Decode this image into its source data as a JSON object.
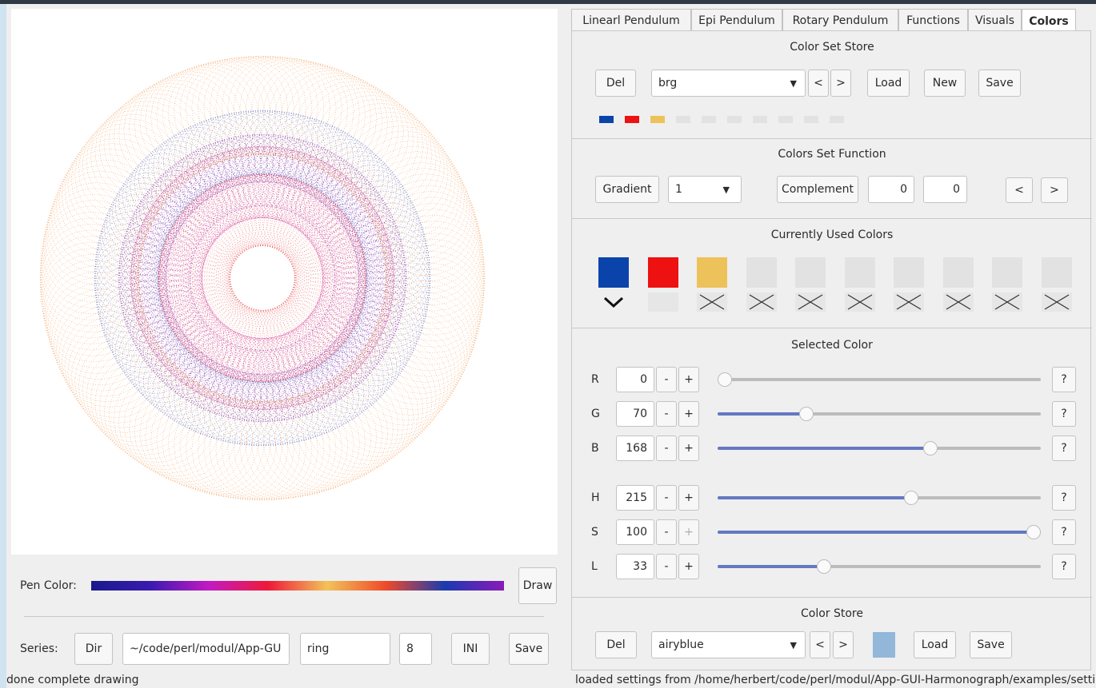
{
  "left": {
    "pen_color_label": "Pen Color:",
    "draw_button": "Draw",
    "series_label": "Series:",
    "dir_button": "Dir",
    "path_value": "~/code/perl/modul/App-GU",
    "name_value": "ring",
    "number_value": "8",
    "ini_button": "INI",
    "save_button": "Save",
    "status": "done complete drawing",
    "drawing_colors": [
      "#2440a8",
      "#7a1fa8",
      "#c8208a",
      "#e43a3a",
      "#f08a3a",
      "#a02090"
    ]
  },
  "tabs": [
    {
      "label": "Linearl Pendulum",
      "active": false
    },
    {
      "label": "Epi Pendulum",
      "active": false
    },
    {
      "label": "Rotary Pendulum",
      "active": false
    },
    {
      "label": "Functions",
      "active": false
    },
    {
      "label": "Visuals",
      "active": false
    },
    {
      "label": "Colors",
      "active": true
    }
  ],
  "color_set_store": {
    "title": "Color Set Store",
    "del": "Del",
    "selected": "brg",
    "prev": "<",
    "next": ">",
    "load": "Load",
    "new": "New",
    "save": "Save",
    "swatches": [
      "#0a44aa",
      "#ee1111",
      "#eec25a",
      "#e2e2e2",
      "#e2e2e2",
      "#e2e2e2",
      "#e2e2e2",
      "#e2e2e2",
      "#e2e2e2",
      "#e2e2e2"
    ]
  },
  "colors_set_function": {
    "title": "Colors Set Function",
    "gradient": "Gradient",
    "gradient_value": "1",
    "complement": "Complement",
    "value1": "0",
    "value2": "0",
    "prev": "<",
    "next": ">"
  },
  "currently_used": {
    "title": "Currently Used Colors",
    "colors": [
      "#0a44aa",
      "#ee1111",
      "#eec25a",
      "#e2e2e2",
      "#e2e2e2",
      "#e2e2e2",
      "#e2e2e2",
      "#e2e2e2",
      "#e2e2e2",
      "#e2e2e2"
    ],
    "marks": [
      "chevron",
      "none",
      "x",
      "x",
      "x",
      "x",
      "x",
      "x",
      "x",
      "x"
    ]
  },
  "selected_color": {
    "title": "Selected Color",
    "channels": [
      {
        "label": "R",
        "value": "0",
        "level": 0.0
      },
      {
        "label": "G",
        "value": "70",
        "level": 0.275
      },
      {
        "label": "B",
        "value": "168",
        "level": 0.659
      },
      {
        "label": "H",
        "value": "215",
        "level": 0.6
      },
      {
        "label": "S",
        "value": "100",
        "level": 1.0
      },
      {
        "label": "L",
        "value": "33",
        "level": 0.33
      }
    ],
    "minus": "-",
    "plus": "+",
    "help": "?"
  },
  "color_store": {
    "title": "Color Store",
    "del": "Del",
    "selected": "airyblue",
    "prev": "<",
    "next": ">",
    "swatch": "#93b7d9",
    "load": "Load",
    "save": "Save"
  },
  "status_right": "loaded settings from /home/herbert/code/perl/modul/App-GUI-Harmonograph/examples/settir",
  "colors": {
    "slider_fill": "#6478c2",
    "pen_gradient": [
      "#1a1a8a",
      "#3a1ab0",
      "#c21ac2",
      "#ee1a3a",
      "#f2c25a",
      "#ee4a2a",
      "#1a3ab0",
      "#8a1ab8"
    ]
  }
}
